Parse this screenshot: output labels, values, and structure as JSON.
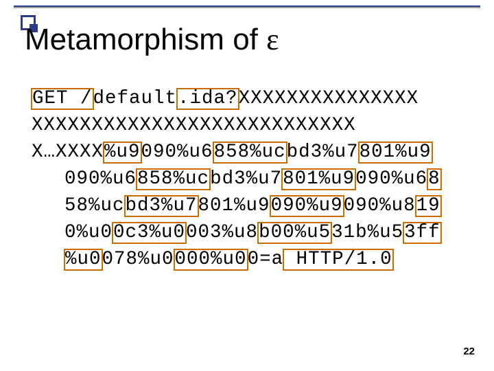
{
  "slide": {
    "title_prefix": "Metamorphism of ",
    "title_epsilon": "ε",
    "page_number": "22"
  },
  "code": {
    "l1a": "GET /",
    "l1b": "default",
    "l1c": ".ida?",
    "l1d": "XXXXXXXXXXXXXXX",
    "l2": "XXXXXXXXXXXXXXXXXXXXXXXXXXX",
    "l3": "X…XXXX",
    "l4a": "%u9",
    "l4b": "090%u6",
    "l4c": "858%uc",
    "l4d": "bd3%u7",
    "l4e": "801%u9",
    "l5a": "090%u6",
    "l5b": "858%uc",
    "l5c": "bd3%u7",
    "l5d": "801%u9",
    "l5e": "090%u6",
    "l5f": "8",
    "l6a": "58%uc",
    "l6b": "bd3%u7",
    "l6c": "801%u9",
    "l6d": "090%u9",
    "l6e": "090%u8",
    "l6f": "19",
    "l7a": "0%u0",
    "l7b": "0c3%u0",
    "l7c": "003%u8",
    "l7d": "b00%u5",
    "l7e": "31b%u5",
    "l7f": "3ff",
    "l8a": "%u0",
    "l8b": "078%u0",
    "l8c": "000%u0",
    "l8d": "0=a",
    "l8e": " HTTP/1.0"
  },
  "style": {
    "highlight_border": "#c96d00",
    "accent": "#2b3b8c",
    "font_mono": "Courier New",
    "font_size_title": 44,
    "font_size_code": 27.5,
    "background": "#ffffff"
  }
}
